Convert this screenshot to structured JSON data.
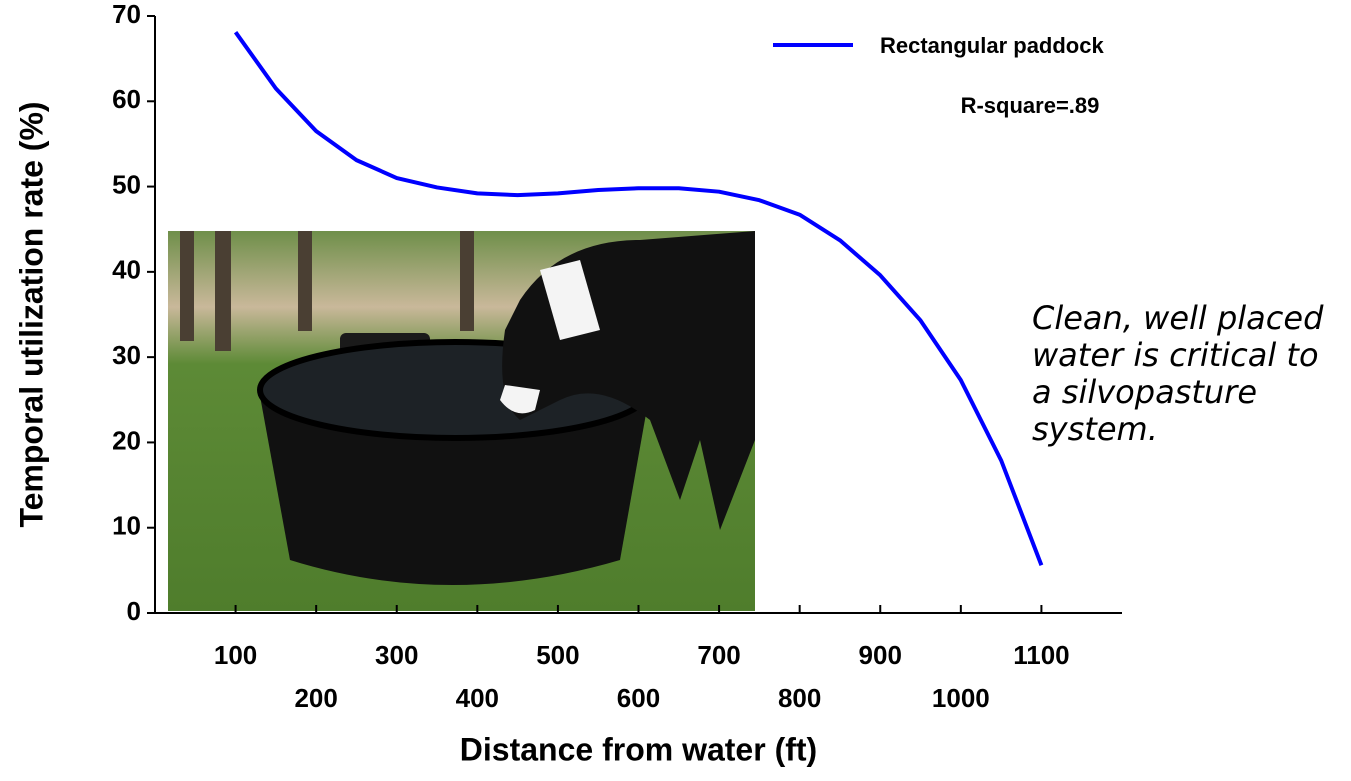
{
  "chart_data": {
    "type": "line",
    "x": [
      100,
      150,
      200,
      250,
      300,
      350,
      400,
      450,
      500,
      550,
      600,
      650,
      700,
      750,
      800,
      850,
      900,
      950,
      1000,
      1050,
      1100
    ],
    "series": [
      {
        "name": "Rectangular paddock",
        "color": "#0000ff",
        "values": [
          68.1,
          61.5,
          56.5,
          53.1,
          51.0,
          49.9,
          49.2,
          49.0,
          49.2,
          49.6,
          49.8,
          49.8,
          49.4,
          48.4,
          46.7,
          43.7,
          39.6,
          34.3,
          27.3,
          17.9,
          5.6
        ]
      }
    ],
    "xlabel": "Distance from water (ft)",
    "ylabel": "Temporal utilization rate (%)",
    "annotations": [
      "R-square=.89",
      "Clean, well placed water is critical to a silvopasture system."
    ],
    "xlim": [
      0,
      1200
    ],
    "xticks": [
      100,
      200,
      300,
      400,
      500,
      600,
      700,
      800,
      900,
      1000,
      1100
    ],
    "ylim": [
      0,
      70
    ],
    "yticks": [
      0,
      10,
      20,
      30,
      40,
      50,
      60,
      70
    ],
    "legend": "upper right"
  }
}
